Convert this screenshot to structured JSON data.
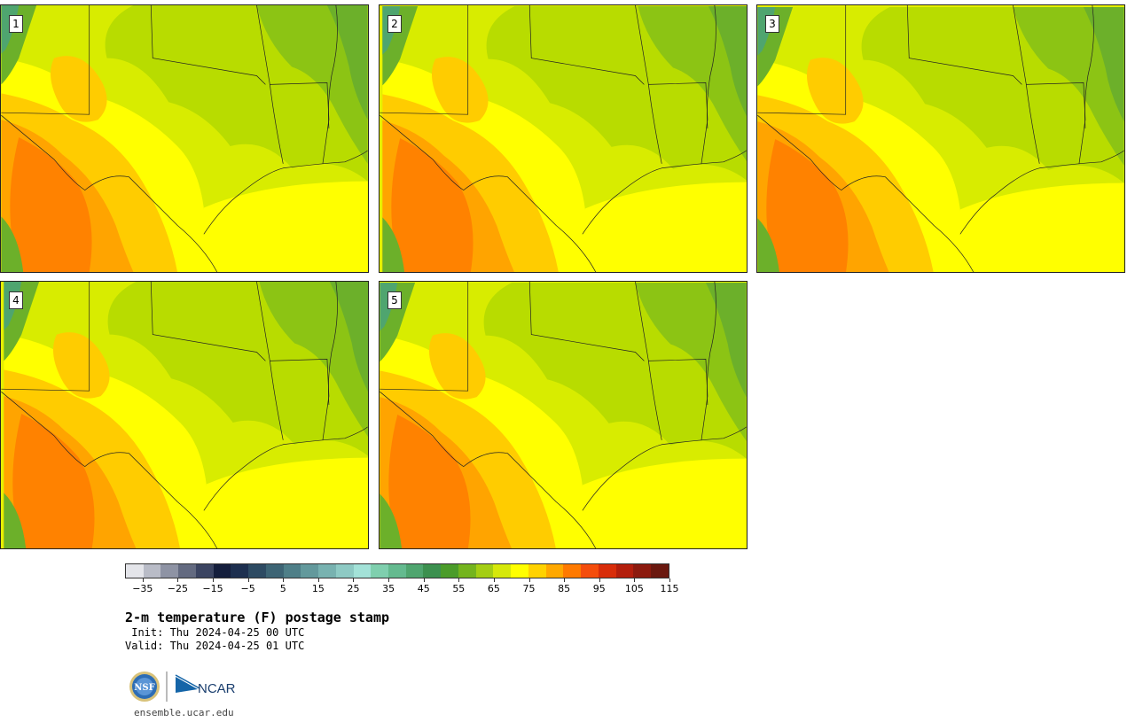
{
  "panels": [
    {
      "label": "1",
      "variant": 0
    },
    {
      "label": "2",
      "variant": 1
    },
    {
      "label": "3",
      "variant": 2
    },
    {
      "label": "4",
      "variant": 3
    },
    {
      "label": "5",
      "variant": 4
    }
  ],
  "colorbar": {
    "colors": [
      "#e4e5ea",
      "#b9bcc7",
      "#8e93a4",
      "#636a80",
      "#3b4461",
      "#141e3c",
      "#1d2f4f",
      "#2d4a62",
      "#3d6474",
      "#4f7f88",
      "#63999c",
      "#78b2b0",
      "#8ecac4",
      "#a3e2d8",
      "#7fcfae",
      "#64ba8f",
      "#4fa56f",
      "#3c904f",
      "#4b9c2a",
      "#74b41e",
      "#a4ce14",
      "#d6e80a",
      "#ffff00",
      "#ffd200",
      "#ffa800",
      "#ff7a00",
      "#f44d0c",
      "#d82d0a",
      "#b31e0c",
      "#8c1a0e",
      "#6a180f"
    ],
    "tick_labels": [
      "−35",
      "−25",
      "−15",
      "−5",
      "5",
      "15",
      "25",
      "35",
      "45",
      "55",
      "65",
      "75",
      "85",
      "95",
      "105",
      "115"
    ]
  },
  "title": "2-m temperature (F) postage stamp",
  "init": " Init: Thu 2024-04-25 00 UTC",
  "valid": "Valid: Thu 2024-04-25 01 UTC",
  "logos": {
    "nsf": "NSF",
    "ncar": "NCAR"
  },
  "site": "ensemble.ucar.edu",
  "icons": [
    "nsf-logo-icon",
    "ncar-logo-icon"
  ]
}
